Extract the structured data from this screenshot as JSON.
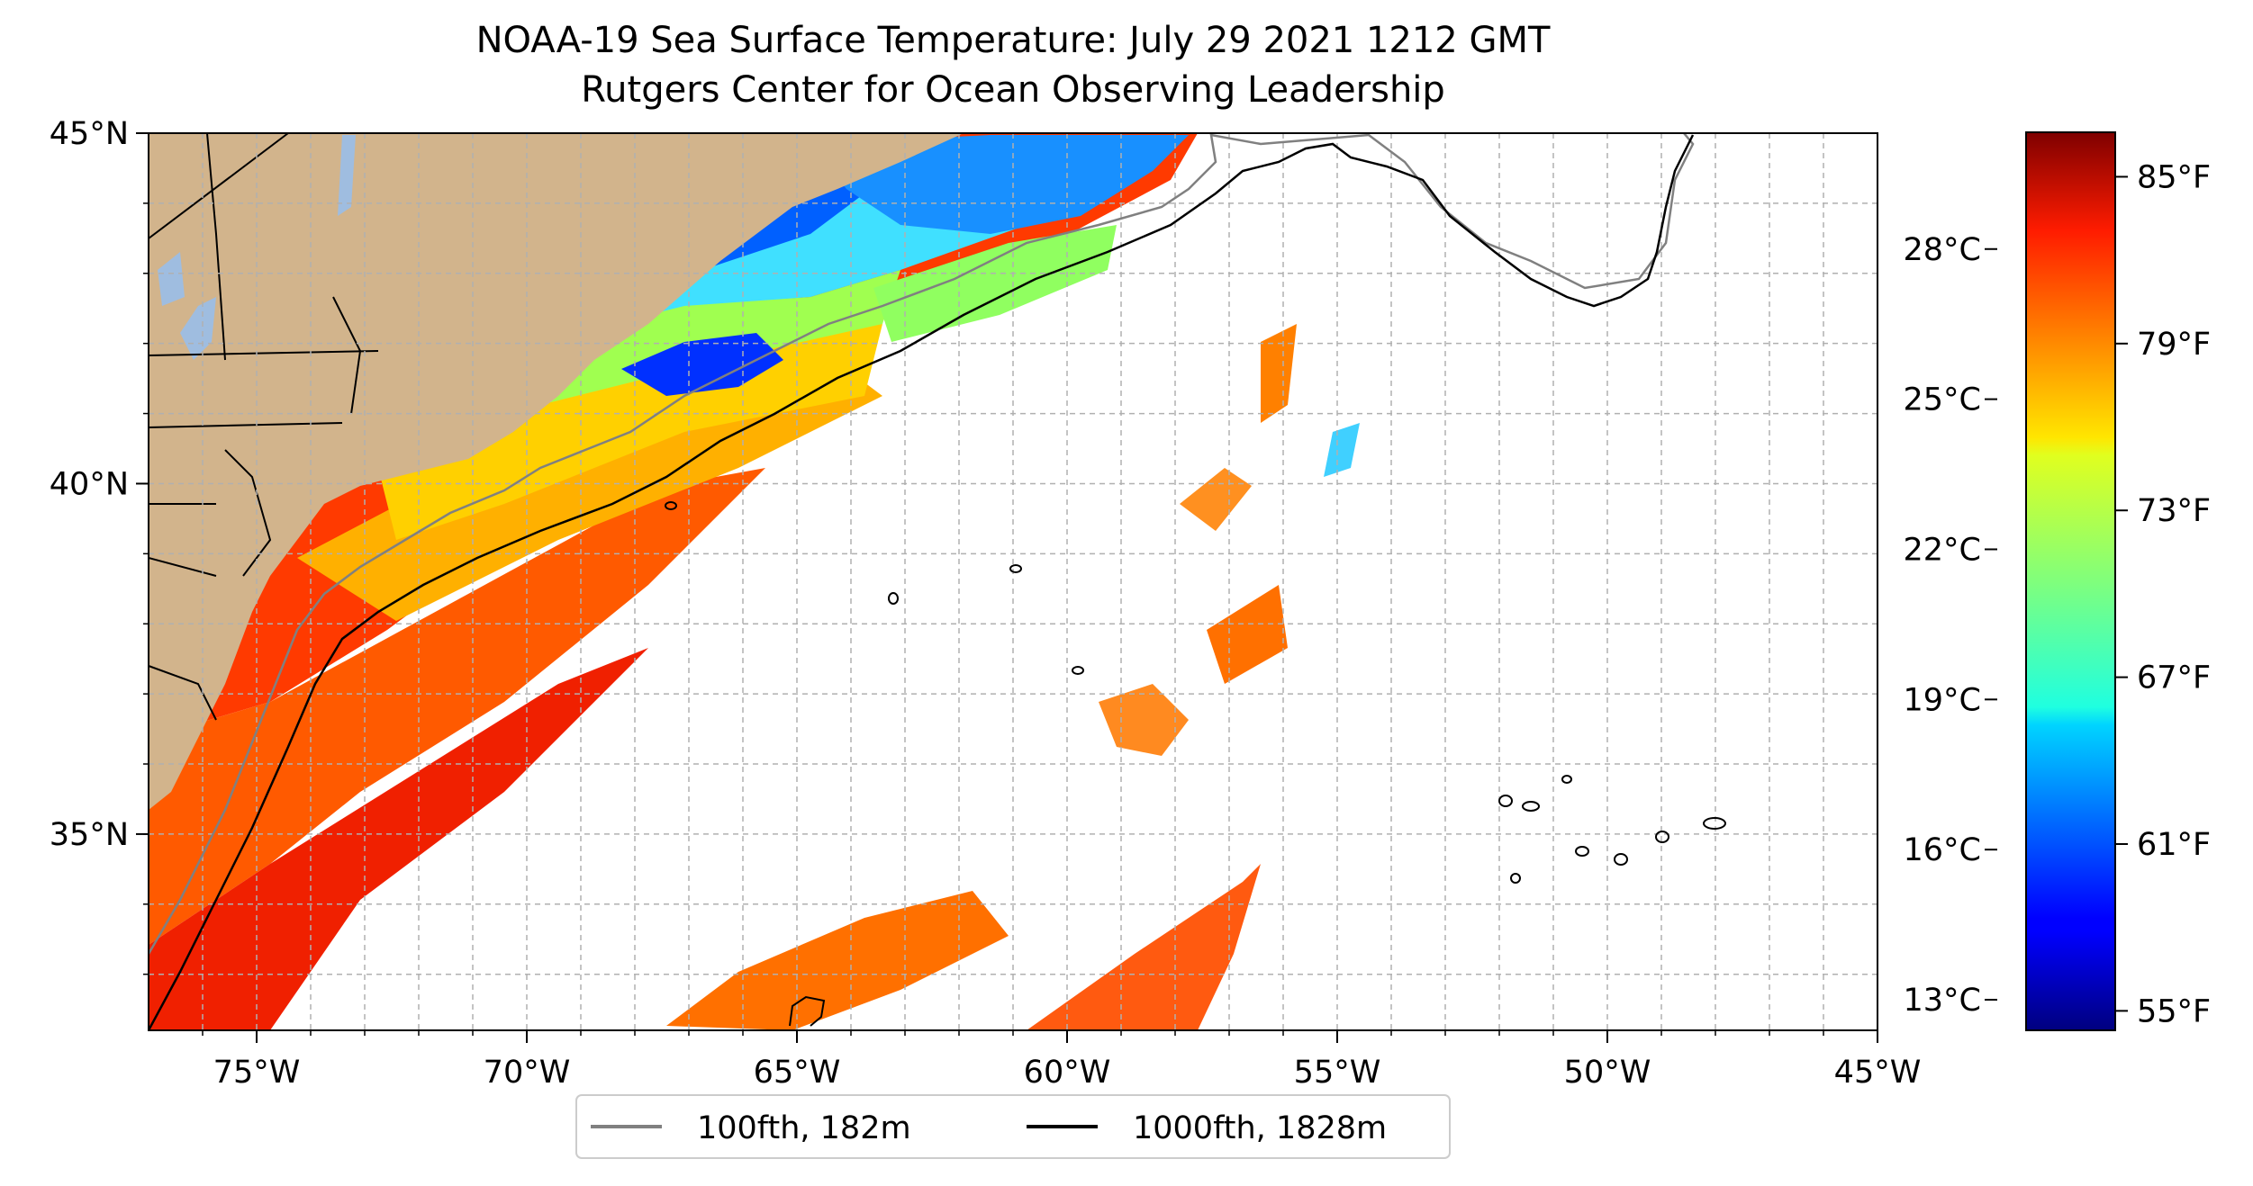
{
  "title": "NOAA-19 Sea Surface Temperature: July 29 2021 1212 GMT",
  "subtitle": "Rutgers Center for Ocean Observing Leadership",
  "map": {
    "lon_range": [
      -77,
      -45
    ],
    "lat_range": [
      32.2,
      45
    ],
    "lon_ticks": [
      {
        "value": -75,
        "label": "75°W"
      },
      {
        "value": -70,
        "label": "70°W"
      },
      {
        "value": -65,
        "label": "65°W"
      },
      {
        "value": -60,
        "label": "60°W"
      },
      {
        "value": -55,
        "label": "55°W"
      },
      {
        "value": -50,
        "label": "50°W"
      },
      {
        "value": -45,
        "label": "45°W"
      }
    ],
    "lat_ticks": [
      {
        "value": 45,
        "label": "45°N"
      },
      {
        "value": 40,
        "label": "40°N"
      },
      {
        "value": 35,
        "label": "35°N"
      }
    ],
    "land_color": "#d2b48c",
    "lake_color": "#9fbde0",
    "gridlines": true
  },
  "legend": {
    "items": [
      {
        "label": "100fth, 182m",
        "color": "#808080"
      },
      {
        "label": "1000fth, 1828m",
        "color": "#000000"
      }
    ],
    "placement": "bottom-center"
  },
  "colorbar": {
    "colormap": "jet",
    "celsius_ticks": [
      {
        "value": 13,
        "label": "13°C"
      },
      {
        "value": 16,
        "label": "16°C"
      },
      {
        "value": 19,
        "label": "19°C"
      },
      {
        "value": 22,
        "label": "22°C"
      },
      {
        "value": 25,
        "label": "25°C"
      },
      {
        "value": 28,
        "label": "28°C"
      }
    ],
    "fahrenheit_ticks": [
      {
        "value": 55,
        "label": "55°F"
      },
      {
        "value": 61,
        "label": "61°F"
      },
      {
        "value": 67,
        "label": "67°F"
      },
      {
        "value": 73,
        "label": "73°F"
      },
      {
        "value": 79,
        "label": "79°F"
      },
      {
        "value": 85,
        "label": "85°F"
      }
    ],
    "range_f": [
      54.3,
      86.6
    ]
  }
}
